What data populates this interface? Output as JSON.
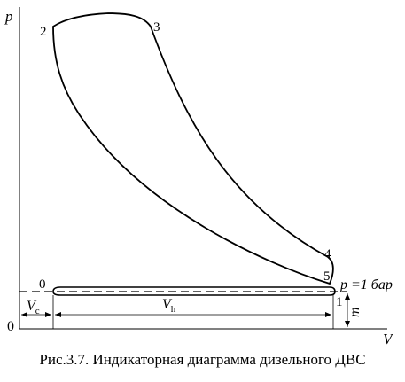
{
  "axes": {
    "y_label": "p",
    "x_label": "V",
    "origin": "0"
  },
  "points": {
    "p0": "0",
    "p1": "1",
    "p2": "2",
    "p3": "3",
    "p4": "4",
    "p5": "5"
  },
  "annotations": {
    "pressure_line_label": "p =1 бар",
    "vc_label": "V",
    "vc_sub": "c",
    "vh_label": "V",
    "vh_sub": "h",
    "m_label": "m"
  },
  "caption": "Рис.3.7. Индикаторная диаграмма дизельного ДВС"
}
